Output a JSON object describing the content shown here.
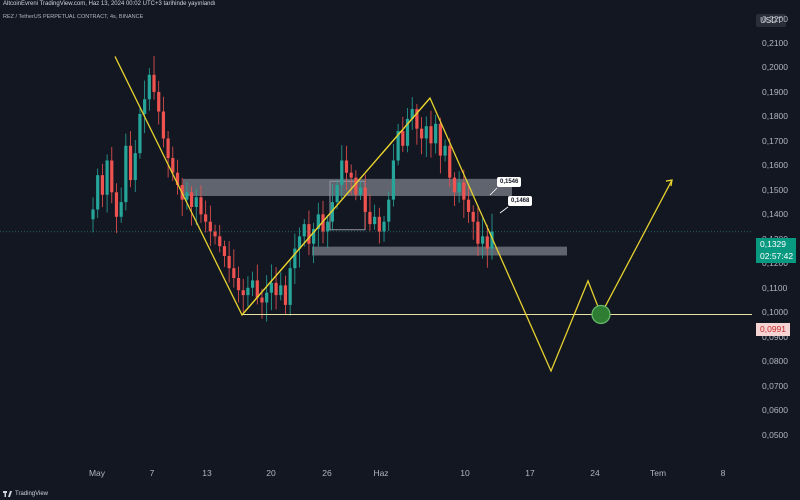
{
  "header": {
    "published": "AltcoinEvreni TradingView.com, Haz 13, 2024 00:02 UTC+3 tarihinde yayınlandı",
    "symbol": "REZ / TetherUS PERPETUAL CONTRACT, 4s, BINANCE",
    "currency": "USDT"
  },
  "price_labels": {
    "last_price": "0,1329",
    "countdown": "02:57:42",
    "level": "0,0991"
  },
  "callouts": [
    {
      "text": "0,1546"
    },
    {
      "text": "0,1468"
    }
  ],
  "footer": {
    "brand": "TradingView"
  },
  "colors": {
    "background": "#131722",
    "up": "#26a69a",
    "down": "#ef5350",
    "pattern_line": "#e6d12e",
    "zone": "#9598a1",
    "target_circle": "#2e7d32"
  },
  "chart_data": {
    "type": "candlestick",
    "y_axis": {
      "ticks": [
        "0,2200",
        "0,2100",
        "0,2000",
        "0,1900",
        "0,1800",
        "0,1700",
        "0,1600",
        "0,1500",
        "0,1400",
        "0,1300",
        "0,1200",
        "0,1100",
        "0,1000",
        "0,0900",
        "0,0800",
        "0,0700",
        "0,0600",
        "0,0500"
      ],
      "range": [
        0.047,
        0.225
      ]
    },
    "x_axis": {
      "ticks": [
        "May",
        "7",
        "13",
        "20",
        "26",
        "Haz",
        "10",
        "17",
        "24",
        "Tem",
        "8"
      ]
    },
    "price_path": {
      "note_series": "approximate close path of 4h candles",
      "values": [
        0.142,
        0.156,
        0.148,
        0.162,
        0.149,
        0.139,
        0.145,
        0.168,
        0.154,
        0.165,
        0.181,
        0.187,
        0.197,
        0.19,
        0.182,
        0.171,
        0.163,
        0.157,
        0.152,
        0.146,
        0.149,
        0.143,
        0.147,
        0.14,
        0.137,
        0.133,
        0.131,
        0.127,
        0.123,
        0.118,
        0.114,
        0.109,
        0.107,
        0.11,
        0.113,
        0.106,
        0.104,
        0.108,
        0.112,
        0.107,
        0.111,
        0.103,
        0.118,
        0.126,
        0.131,
        0.136,
        0.128,
        0.134,
        0.14,
        0.133,
        0.137,
        0.145,
        0.152,
        0.162,
        0.157,
        0.155,
        0.148,
        0.151,
        0.141,
        0.136,
        0.139,
        0.133,
        0.137,
        0.146,
        0.162,
        0.174,
        0.168,
        0.179,
        0.183,
        0.175,
        0.171,
        0.176,
        0.169,
        0.177,
        0.164,
        0.168,
        0.155,
        0.149,
        0.153,
        0.146,
        0.141,
        0.137,
        0.128,
        0.131,
        0.126,
        0.133
      ],
      "last": 0.1329
    },
    "zones": [
      {
        "from": 0.1475,
        "to": 0.1545,
        "label_high": "0,1546",
        "label_low": "0,1468"
      },
      {
        "from": 0.1232,
        "to": 0.1268
      }
    ],
    "horizontal_level": 0.0991,
    "pattern": {
      "points": [
        {
          "x": "May",
          "y": 0.2045
        },
        {
          "x": "17 May",
          "y": 0.0989
        },
        {
          "x": "Haz 7",
          "y": 0.1875
        },
        {
          "x": "Haz 19",
          "y": 0.076
        },
        {
          "x": "Haz 23",
          "y": 0.1128
        },
        {
          "x": "Haz 25",
          "y": 0.0991
        },
        {
          "x": "Tem 3",
          "y": 0.154
        }
      ]
    }
  }
}
